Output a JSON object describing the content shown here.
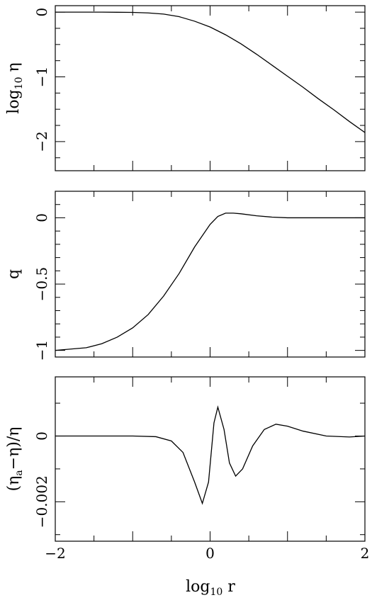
{
  "chart_data": [
    {
      "type": "line",
      "title": "",
      "xlabel_main": "log",
      "xlabel_sub": "10",
      "xlabel_tail": " r",
      "ylabel_main": "log",
      "ylabel_sub": "10",
      "ylabel_tail": " η",
      "xlim": [
        -2,
        2
      ],
      "ylim": [
        -2.45,
        0.1
      ],
      "x_ticks": [
        -2,
        -1.5,
        -1,
        -0.5,
        0,
        0.5,
        1,
        1.5,
        2
      ],
      "y_ticks_major": [
        0,
        -1,
        -2
      ],
      "y_tick_labels": [
        "0",
        "−1",
        "−2"
      ],
      "y_ticks_minor": [
        -0.25,
        -0.5,
        -0.75,
        -1.25,
        -1.5,
        -1.75,
        -2.25
      ],
      "series": [
        {
          "x": [
            -2,
            -1.8,
            -1.6,
            -1.4,
            -1.2,
            -1.0,
            -0.8,
            -0.6,
            -0.4,
            -0.2,
            0,
            0.2,
            0.4,
            0.6,
            0.8,
            1.0,
            1.2,
            1.4,
            1.6,
            1.8,
            2.0
          ],
          "y": [
            0,
            0,
            0,
            0,
            -0.002,
            -0.004,
            -0.012,
            -0.03,
            -0.07,
            -0.14,
            -0.23,
            -0.35,
            -0.49,
            -0.65,
            -0.82,
            -0.99,
            -1.16,
            -1.34,
            -1.51,
            -1.69,
            -1.86
          ]
        }
      ]
    },
    {
      "type": "line",
      "title": "",
      "ylabel": "q",
      "xlim": [
        -2,
        2
      ],
      "ylim": [
        -1.05,
        0.2
      ],
      "x_ticks": [
        -2,
        -1.5,
        -1,
        -0.5,
        0,
        0.5,
        1,
        1.5,
        2
      ],
      "y_ticks_major": [
        0,
        -0.5,
        -1
      ],
      "y_tick_labels": [
        "0",
        "−0.5",
        "−1"
      ],
      "y_ticks_minor": [
        -0.1,
        -0.2,
        -0.3,
        -0.4,
        -0.6,
        -0.7,
        -0.8,
        -0.9,
        0.1
      ],
      "series": [
        {
          "x": [
            -2,
            -1.8,
            -1.6,
            -1.4,
            -1.2,
            -1.0,
            -0.8,
            -0.6,
            -0.4,
            -0.2,
            0,
            0.1,
            0.2,
            0.3,
            0.4,
            0.6,
            0.8,
            1.0,
            1.2,
            1.5,
            2.0
          ],
          "y": [
            -1.0,
            -0.99,
            -0.98,
            -0.95,
            -0.9,
            -0.83,
            -0.73,
            -0.59,
            -0.42,
            -0.22,
            -0.05,
            0.01,
            0.035,
            0.035,
            0.03,
            0.015,
            0.005,
            0,
            0,
            0,
            0
          ]
        }
      ]
    },
    {
      "type": "line",
      "title": "",
      "ylabel": "(η_a−η)/η",
      "ylabel_pre": "(η",
      "ylabel_sub": "a",
      "ylabel_post": "−η)/η",
      "xlim": [
        -2,
        2
      ],
      "ylim": [
        -0.0032,
        0.0018
      ],
      "x_ticks": [
        -2,
        -1.5,
        -1,
        -0.5,
        0,
        0.5,
        1,
        1.5,
        2
      ],
      "x_tick_labels_major": [
        "−2",
        "0",
        "2"
      ],
      "x_tick_labels_major_values": [
        -2,
        0,
        2
      ],
      "y_ticks_major": [
        0,
        -0.002
      ],
      "y_tick_labels": [
        "0",
        "−0.002"
      ],
      "y_ticks_minor": [
        0.001,
        -0.001,
        -0.003
      ],
      "series": [
        {
          "x": [
            -2,
            -1.5,
            -1.0,
            -0.7,
            -0.5,
            -0.35,
            -0.2,
            -0.1,
            -0.02,
            0.05,
            0.1,
            0.18,
            0.25,
            0.33,
            0.42,
            0.55,
            0.7,
            0.85,
            1.0,
            1.2,
            1.5,
            1.8,
            2.0
          ],
          "y": [
            0,
            0,
            0,
            -2e-05,
            -0.00015,
            -0.0005,
            -0.0014,
            -0.00205,
            -0.0014,
            0.0004,
            0.00088,
            0.0002,
            -0.00082,
            -0.00122,
            -0.001,
            -0.0003,
            0.0002,
            0.00036,
            0.0003,
            0.00015,
            0.0,
            -3e-05,
            0
          ]
        }
      ]
    }
  ]
}
